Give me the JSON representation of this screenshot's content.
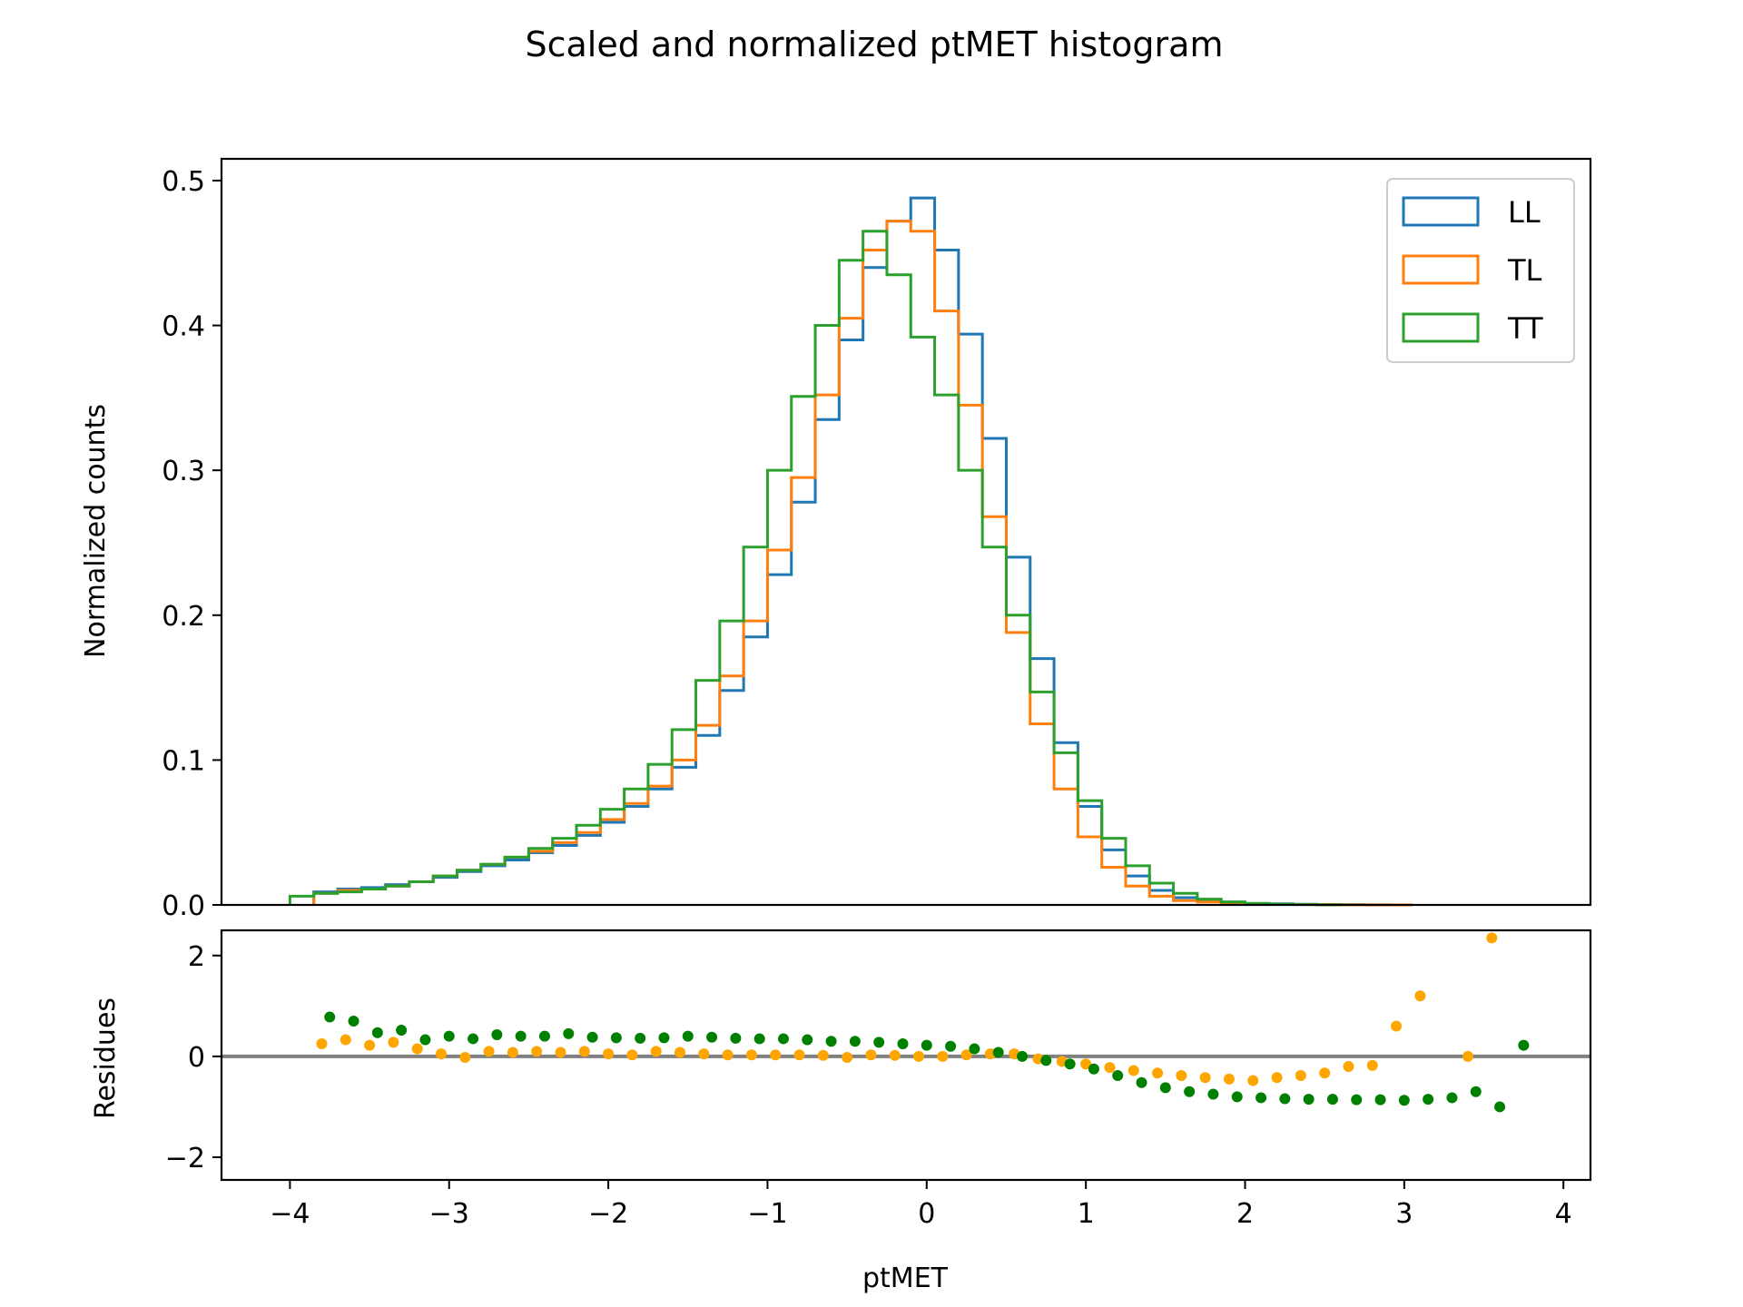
{
  "chart_data": [
    {
      "type": "step-histogram",
      "title": "Scaled and normalized ptMET histogram",
      "xlabel": "",
      "ylabel": "Normalized counts",
      "xlim": [
        -4.43,
        4.17
      ],
      "ylim": [
        0.0,
        0.515
      ],
      "yticks": [
        0.0,
        0.1,
        0.2,
        0.3,
        0.4,
        0.5
      ],
      "ytick_labels": [
        "0.0",
        "0.1",
        "0.2",
        "0.3",
        "0.4",
        "0.5"
      ],
      "legend_position": "upper right",
      "grid": false,
      "series": [
        {
          "name": "LL",
          "color": "#1f77b4",
          "bin_start": -3.85,
          "bin_width": 0.15,
          "values": [
            0.009,
            0.011,
            0.012,
            0.014,
            0.016,
            0.019,
            0.023,
            0.027,
            0.031,
            0.036,
            0.041,
            0.048,
            0.057,
            0.068,
            0.08,
            0.095,
            0.117,
            0.148,
            0.185,
            0.228,
            0.278,
            0.335,
            0.39,
            0.44,
            0.472,
            0.488,
            0.452,
            0.394,
            0.322,
            0.24,
            0.17,
            0.112,
            0.068,
            0.038,
            0.02,
            0.01,
            0.005,
            0.003,
            0.002,
            0.001,
            0.0008,
            0.0005,
            0.0003,
            0.0002,
            0.0001,
            0.0
          ]
        },
        {
          "name": "TL",
          "color": "#ff7f0e",
          "bin_start": -3.85,
          "bin_width": 0.15,
          "values": [
            0.008,
            0.01,
            0.011,
            0.013,
            0.016,
            0.02,
            0.024,
            0.028,
            0.033,
            0.037,
            0.043,
            0.05,
            0.059,
            0.07,
            0.082,
            0.1,
            0.124,
            0.158,
            0.196,
            0.245,
            0.295,
            0.352,
            0.405,
            0.452,
            0.472,
            0.465,
            0.41,
            0.345,
            0.268,
            0.188,
            0.125,
            0.08,
            0.047,
            0.026,
            0.013,
            0.006,
            0.003,
            0.002,
            0.001,
            0.0007,
            0.0004,
            0.0003,
            0.0002,
            0.0001,
            0.0001,
            0.0
          ]
        },
        {
          "name": "TT",
          "color": "#2ca02c",
          "bin_start": -4.0,
          "bin_width": 0.15,
          "values": [
            0.006,
            0.008,
            0.009,
            0.011,
            0.013,
            0.016,
            0.02,
            0.024,
            0.028,
            0.033,
            0.039,
            0.046,
            0.055,
            0.066,
            0.08,
            0.097,
            0.121,
            0.155,
            0.196,
            0.247,
            0.3,
            0.351,
            0.4,
            0.445,
            0.465,
            0.435,
            0.392,
            0.352,
            0.3,
            0.247,
            0.2,
            0.147,
            0.105,
            0.072,
            0.046,
            0.027,
            0.015,
            0.008,
            0.004,
            0.002,
            0.001,
            0.0005,
            0.0002,
            0.0001
          ]
        }
      ]
    },
    {
      "type": "scatter",
      "title": "",
      "xlabel": "ptMET",
      "ylabel": "Residues",
      "xlim": [
        -4.43,
        4.17
      ],
      "ylim": [
        -2.45,
        2.5
      ],
      "xticks": [
        -4,
        -3,
        -2,
        -1,
        0,
        1,
        2,
        3,
        4
      ],
      "xtick_labels": [
        "−4",
        "−3",
        "−2",
        "−1",
        "0",
        "1",
        "2",
        "3",
        "4"
      ],
      "yticks": [
        -2,
        0,
        2
      ],
      "ytick_labels": [
        "−2",
        "0",
        "2"
      ],
      "reference_line": {
        "y": 0,
        "color": "#808080"
      },
      "grid": false,
      "series": [
        {
          "color": "#ffa500",
          "x": [
            -3.8,
            -3.65,
            -3.5,
            -3.35,
            -3.2,
            -3.05,
            -2.9,
            -2.75,
            -2.6,
            -2.45,
            -2.3,
            -2.15,
            -2.0,
            -1.85,
            -1.7,
            -1.55,
            -1.4,
            -1.25,
            -1.1,
            -0.95,
            -0.8,
            -0.65,
            -0.5,
            -0.35,
            -0.2,
            -0.05,
            0.1,
            0.25,
            0.4,
            0.55,
            0.7,
            0.85,
            1.0,
            1.15,
            1.3,
            1.45,
            1.6,
            1.75,
            1.9,
            2.05,
            2.2,
            2.35,
            2.5,
            2.65,
            2.8,
            2.95,
            3.1,
            3.4,
            3.55
          ],
          "y": [
            0.25,
            0.33,
            0.22,
            0.28,
            0.15,
            0.05,
            -0.02,
            0.1,
            0.08,
            0.1,
            0.08,
            0.1,
            0.05,
            0.03,
            0.1,
            0.08,
            0.05,
            0.03,
            0.03,
            0.03,
            0.03,
            0.02,
            -0.02,
            0.03,
            0.02,
            0.0,
            0.0,
            0.03,
            0.05,
            0.05,
            -0.05,
            -0.1,
            -0.15,
            -0.22,
            -0.28,
            -0.33,
            -0.38,
            -0.42,
            -0.45,
            -0.48,
            -0.42,
            -0.38,
            -0.33,
            -0.2,
            -0.18,
            0.6,
            1.2,
            0.0,
            2.35
          ]
        },
        {
          "color": "#008000",
          "x": [
            -3.75,
            -3.6,
            -3.45,
            -3.3,
            -3.15,
            -3.0,
            -2.85,
            -2.7,
            -2.55,
            -2.4,
            -2.25,
            -2.1,
            -1.95,
            -1.8,
            -1.65,
            -1.5,
            -1.35,
            -1.2,
            -1.05,
            -0.9,
            -0.75,
            -0.6,
            -0.45,
            -0.3,
            -0.15,
            0.0,
            0.15,
            0.3,
            0.45,
            0.6,
            0.75,
            0.9,
            1.05,
            1.2,
            1.35,
            1.5,
            1.65,
            1.8,
            1.95,
            2.1,
            2.25,
            2.4,
            2.55,
            2.7,
            2.85,
            3.0,
            3.15,
            3.3,
            3.45,
            3.6,
            3.75
          ],
          "y": [
            0.78,
            0.7,
            0.47,
            0.52,
            0.33,
            0.4,
            0.35,
            0.43,
            0.4,
            0.4,
            0.45,
            0.38,
            0.37,
            0.36,
            0.37,
            0.4,
            0.38,
            0.36,
            0.35,
            0.35,
            0.33,
            0.3,
            0.3,
            0.28,
            0.25,
            0.22,
            0.2,
            0.15,
            0.08,
            0.0,
            -0.08,
            -0.15,
            -0.25,
            -0.38,
            -0.52,
            -0.62,
            -0.7,
            -0.75,
            -0.8,
            -0.82,
            -0.84,
            -0.85,
            -0.85,
            -0.86,
            -0.86,
            -0.87,
            -0.85,
            -0.82,
            -0.7,
            -1.0,
            0.22
          ]
        }
      ]
    }
  ]
}
